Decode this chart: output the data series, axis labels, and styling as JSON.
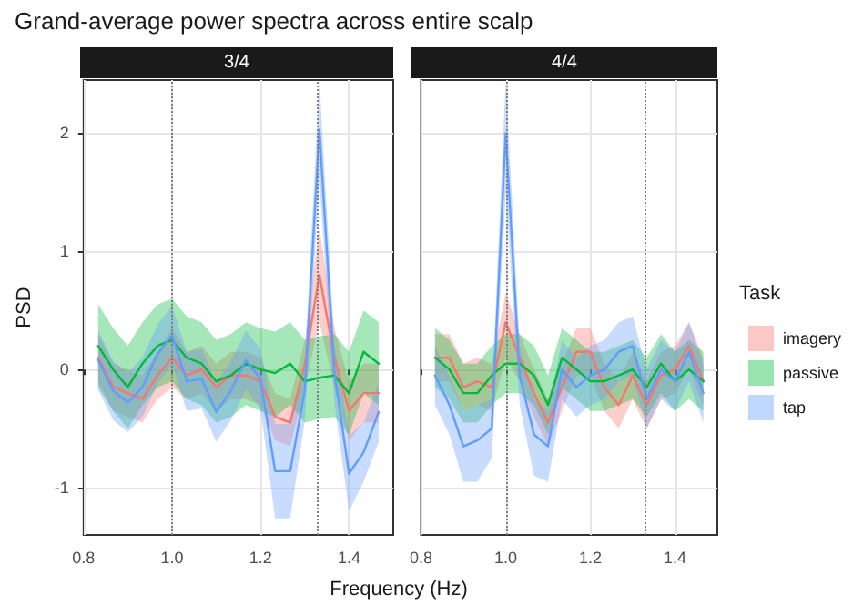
{
  "chart_data": [
    {
      "type": "line",
      "title": "Grand-average power spectra across entire scalp",
      "subtitle": "3/4",
      "xlabel": "Frequency (Hz)",
      "ylabel": "PSD",
      "x": [
        0.833,
        0.867,
        0.9,
        0.933,
        0.967,
        1.0,
        1.033,
        1.067,
        1.1,
        1.133,
        1.167,
        1.2,
        1.233,
        1.267,
        1.3,
        1.333,
        1.367,
        1.4,
        1.433,
        1.467
      ],
      "series": [
        {
          "color": "#f8766d",
          "values": [
            0.1,
            -0.15,
            -0.2,
            -0.25,
            -0.05,
            0.1,
            -0.05,
            0,
            -0.15,
            -0.05,
            -0.05,
            -0.1,
            -0.4,
            -0.45,
            0.05,
            0.8,
            0.1,
            -0.35,
            -0.2,
            -0.2
          ],
          "lower": [
            -0.1,
            -0.35,
            -0.4,
            -0.45,
            -0.25,
            -0.15,
            -0.25,
            -0.2,
            -0.35,
            -0.25,
            -0.25,
            -0.3,
            -0.6,
            -0.65,
            -0.15,
            0.4,
            -0.15,
            -0.6,
            -0.45,
            -0.45
          ],
          "upper": [
            0.3,
            0.05,
            0,
            -0.05,
            0.15,
            0.35,
            0.15,
            0.2,
            0.05,
            0.15,
            0.15,
            0.1,
            -0.2,
            -0.25,
            0.25,
            1.2,
            0.35,
            -0.1,
            0.05,
            0.05
          ]
        },
        {
          "color": "#00ba38",
          "values": [
            0.2,
            0,
            -0.15,
            0.05,
            0.2,
            0.25,
            0.1,
            0.05,
            -0.1,
            -0.05,
            0.05,
            0,
            -0.03,
            0.05,
            -0.1,
            -0.07,
            -0.05,
            -0.2,
            0.15,
            0.05
          ],
          "lower": [
            -0.15,
            -0.35,
            -0.5,
            -0.3,
            -0.15,
            -0.1,
            -0.25,
            -0.3,
            -0.45,
            -0.4,
            -0.3,
            -0.35,
            -0.4,
            -0.3,
            -0.45,
            -0.42,
            -0.4,
            -0.55,
            -0.2,
            -0.3
          ],
          "upper": [
            0.55,
            0.35,
            0.2,
            0.4,
            0.55,
            0.6,
            0.45,
            0.4,
            0.25,
            0.3,
            0.4,
            0.35,
            0.32,
            0.4,
            0.25,
            0.28,
            0.3,
            0.15,
            0.5,
            0.4
          ]
        },
        {
          "color": "#619cff",
          "values": [
            0.08,
            -0.18,
            -0.28,
            -0.15,
            0.13,
            0.29,
            -0.1,
            -0.08,
            -0.36,
            -0.18,
            0.08,
            -0.08,
            -0.86,
            -0.86,
            -0.18,
            2.03,
            -0.03,
            -0.88,
            -0.7,
            -0.36
          ],
          "lower": [
            -0.17,
            -0.43,
            -0.53,
            -0.4,
            -0.12,
            0.04,
            -0.35,
            -0.33,
            -0.61,
            -0.43,
            -0.17,
            -0.33,
            -1.26,
            -1.26,
            -0.43,
            1.6,
            -0.28,
            -1.2,
            -0.95,
            -0.61
          ],
          "upper": [
            0.33,
            0.07,
            -0.03,
            0.1,
            0.38,
            0.54,
            0.15,
            0.17,
            -0.11,
            0.07,
            0.33,
            0.17,
            -0.46,
            -0.46,
            0.07,
            2.45,
            0.22,
            -0.56,
            -0.45,
            -0.11
          ]
        }
      ],
      "xlim": [
        0.8,
        1.5
      ],
      "ylim": [
        -1.4,
        2.45
      ],
      "xticks": [
        0.8,
        {
          "value": 1,
          "label": "1.0"
        },
        1.2,
        1.4
      ],
      "yticks": [
        -1,
        0,
        1,
        2
      ],
      "ref_lines": [
        {
          "axis": "x",
          "value": 1,
          "line_style": "dotted",
          "color": "#808080"
        },
        {
          "axis": "x",
          "value": 1.333,
          "line_style": "dotted",
          "color": "#808080"
        }
      ],
      "grid": true
    },
    {
      "type": "line",
      "subtitle": "4/4",
      "legend_title": "Task",
      "legend": "right",
      "tick_labels": "x",
      "x": [
        0.833,
        0.867,
        0.9,
        0.933,
        0.967,
        1.0,
        1.033,
        1.067,
        1.1,
        1.133,
        1.167,
        1.2,
        1.233,
        1.267,
        1.3,
        1.333,
        1.367,
        1.4,
        1.433,
        1.467
      ],
      "series": [
        {
          "name": "imagery",
          "color": "#f8766d",
          "values": [
            0.1,
            0.1,
            -0.15,
            -0.1,
            -0.15,
            0.4,
            0.1,
            -0.2,
            -0.45,
            -0.15,
            0.15,
            0.15,
            -0.15,
            -0.3,
            -0.05,
            -0.3,
            -0.05,
            0,
            0.2,
            -0.1
          ],
          "lower": [
            -0.1,
            -0.1,
            -0.35,
            -0.3,
            -0.35,
            0.1,
            -0.1,
            -0.4,
            -0.65,
            -0.35,
            -0.05,
            -0.05,
            -0.35,
            -0.5,
            -0.25,
            -0.5,
            -0.25,
            -0.2,
            0,
            -0.3
          ],
          "upper": [
            0.3,
            0.3,
            0.05,
            0.1,
            0.05,
            0.65,
            0.3,
            0,
            -0.25,
            0.05,
            0.35,
            0.35,
            0.05,
            -0.1,
            0.15,
            -0.1,
            0.15,
            0.2,
            0.4,
            0.1
          ]
        },
        {
          "name": "passive",
          "color": "#00ba38",
          "values": [
            0.1,
            0,
            -0.2,
            -0.2,
            -0.05,
            0.05,
            0.05,
            -0.05,
            -0.3,
            0.1,
            0,
            -0.1,
            -0.1,
            -0.05,
            0,
            -0.15,
            0.05,
            -0.1,
            0,
            -0.1
          ],
          "lower": [
            -0.15,
            -0.25,
            -0.45,
            -0.45,
            -0.3,
            -0.2,
            -0.2,
            -0.3,
            -0.55,
            -0.15,
            -0.25,
            -0.35,
            -0.35,
            -0.3,
            -0.25,
            -0.4,
            -0.2,
            -0.35,
            -0.25,
            -0.35
          ],
          "upper": [
            0.35,
            0.25,
            0.05,
            0.05,
            0.2,
            0.3,
            0.3,
            0.2,
            -0.05,
            0.35,
            0.25,
            0.15,
            0.15,
            0.2,
            0.25,
            0.1,
            0.3,
            0.15,
            0.25,
            0.15
          ]
        },
        {
          "name": "tap",
          "color": "#619cff",
          "values": [
            -0.05,
            -0.3,
            -0.65,
            -0.6,
            -0.5,
            2,
            -0.05,
            -0.55,
            -0.65,
            0,
            -0.15,
            -0.05,
            0,
            0.15,
            0.2,
            -0.25,
            0,
            -0.1,
            0.15,
            -0.2
          ],
          "lower": [
            -0.3,
            -0.55,
            -0.95,
            -0.95,
            -0.75,
            1.5,
            -0.3,
            -0.9,
            -0.95,
            -0.25,
            -0.4,
            -0.3,
            -0.25,
            -0.1,
            -0.05,
            -0.5,
            -0.25,
            -0.35,
            -0.1,
            -0.45
          ],
          "upper": [
            0.2,
            -0.05,
            -0.35,
            -0.3,
            -0.25,
            2.45,
            0.2,
            -0.25,
            -0.35,
            0.25,
            0.1,
            0.2,
            0.25,
            0.4,
            0.45,
            0,
            0.25,
            0.15,
            0.4,
            0.05
          ]
        }
      ],
      "xlim": [
        0.8,
        1.5
      ],
      "ylim": [
        -1.4,
        2.45
      ],
      "xticks": [
        0.8,
        {
          "value": 1,
          "label": "1.0"
        },
        1.2,
        1.4
      ],
      "yticks": [
        -1,
        0,
        1,
        2
      ],
      "ref_lines": [
        {
          "axis": "x",
          "value": 1,
          "line_style": "dotted",
          "color": "#808080"
        },
        {
          "axis": "x",
          "value": 1.333,
          "line_style": "dotted",
          "color": "#808080"
        }
      ],
      "grid": true
    }
  ]
}
